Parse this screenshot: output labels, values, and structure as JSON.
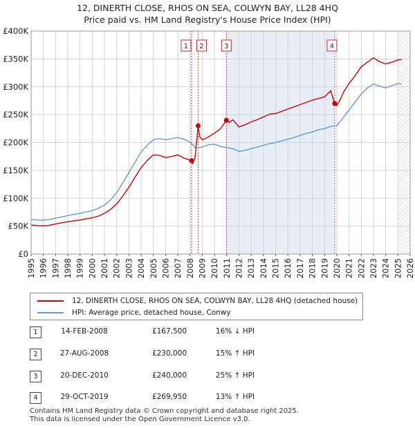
{
  "title_line1": "12, DINERTH CLOSE, RHOS ON SEA, COLWYN BAY, LL28 4HQ",
  "title_line2": "Price paid vs. HM Land Registry's House Price Index (HPI)",
  "chart_data": {
    "type": "line",
    "xlabel": "",
    "ylabel": "",
    "xlim": [
      1995,
      2026
    ],
    "ylim": [
      0,
      400000
    ],
    "x_ticks": [
      "1995",
      "1996",
      "1997",
      "1998",
      "1999",
      "2000",
      "2001",
      "2002",
      "2003",
      "2004",
      "2005",
      "2006",
      "2007",
      "2008",
      "2009",
      "2010",
      "2011",
      "2012",
      "2013",
      "2014",
      "2015",
      "2016",
      "2017",
      "2018",
      "2019",
      "2020",
      "2021",
      "2022",
      "2023",
      "2024",
      "2025",
      "2026"
    ],
    "y_ticks": [
      {
        "value": 0,
        "label": "£0"
      },
      {
        "value": 50000,
        "label": "£50K"
      },
      {
        "value": 100000,
        "label": "£100K"
      },
      {
        "value": 150000,
        "label": "£150K"
      },
      {
        "value": 200000,
        "label": "£200K"
      },
      {
        "value": 250000,
        "label": "£250K"
      },
      {
        "value": 300000,
        "label": "£300K"
      },
      {
        "value": 350000,
        "label": "£350K"
      },
      {
        "value": 400000,
        "label": "£400K"
      }
    ],
    "shaded_region": [
      2010.97,
      2019.83
    ],
    "future_hatch_from": 2025.0,
    "series": [
      {
        "name": "12, DINERTH CLOSE, RHOS ON SEA, COLWYN BAY, LL28 4HQ (detached house)",
        "color": "#cc0000",
        "x": [
          1995.0,
          1995.5,
          1996.0,
          1996.5,
          1997.0,
          1997.5,
          1998.0,
          1998.5,
          1999.0,
          1999.5,
          2000.0,
          2000.5,
          2001.0,
          2001.5,
          2002.0,
          2002.5,
          2003.0,
          2003.5,
          2004.0,
          2004.5,
          2005.0,
          2005.5,
          2006.0,
          2006.5,
          2007.0,
          2007.5,
          2008.12,
          2008.2,
          2008.4,
          2008.66,
          2008.8,
          2009.0,
          2009.5,
          2010.0,
          2010.5,
          2010.97,
          2011.2,
          2011.5,
          2012.0,
          2012.5,
          2013.0,
          2013.5,
          2014.0,
          2014.5,
          2015.0,
          2015.5,
          2016.0,
          2016.5,
          2017.0,
          2017.5,
          2018.0,
          2018.5,
          2019.0,
          2019.5,
          2019.83,
          2020.0,
          2020.3,
          2020.6,
          2021.0,
          2021.5,
          2022.0,
          2022.5,
          2023.0,
          2023.5,
          2024.0,
          2024.5,
          2025.0,
          2025.3
        ],
        "values": [
          52000,
          51000,
          50500,
          51500,
          54000,
          56000,
          58000,
          59500,
          61000,
          63000,
          65000,
          68000,
          73000,
          80000,
          90000,
          104000,
          120000,
          138000,
          155000,
          168000,
          178000,
          177000,
          173000,
          175000,
          178000,
          172000,
          167500,
          162000,
          172000,
          230000,
          210000,
          205000,
          210000,
          217000,
          225000,
          240000,
          236000,
          241000,
          228000,
          232000,
          237000,
          241000,
          246000,
          251000,
          252000,
          256000,
          260000,
          264000,
          268000,
          272000,
          276000,
          279000,
          282000,
          293000,
          269950,
          266000,
          278000,
          292000,
          306000,
          320000,
          336000,
          344000,
          352000,
          345000,
          341000,
          344000,
          348000,
          349000
        ]
      },
      {
        "name": "HPI: Average price, detached house, Conwy",
        "color": "#6699cc",
        "x": [
          1995.0,
          1995.5,
          1996.0,
          1996.5,
          1997.0,
          1997.5,
          1998.0,
          1998.5,
          1999.0,
          1999.5,
          2000.0,
          2000.5,
          2001.0,
          2001.5,
          2002.0,
          2002.5,
          2003.0,
          2003.5,
          2004.0,
          2004.5,
          2005.0,
          2005.5,
          2006.0,
          2006.5,
          2007.0,
          2007.5,
          2008.0,
          2008.5,
          2009.0,
          2009.5,
          2010.0,
          2010.5,
          2011.0,
          2011.5,
          2012.0,
          2012.5,
          2013.0,
          2013.5,
          2014.0,
          2014.5,
          2015.0,
          2015.5,
          2016.0,
          2016.5,
          2017.0,
          2017.5,
          2018.0,
          2018.5,
          2019.0,
          2019.5,
          2020.0,
          2020.5,
          2021.0,
          2021.5,
          2022.0,
          2022.5,
          2023.0,
          2023.5,
          2024.0,
          2024.5,
          2025.0,
          2025.3
        ],
        "values": [
          62000,
          61000,
          60500,
          62000,
          64500,
          66500,
          69000,
          71000,
          73000,
          75500,
          78000,
          82000,
          88000,
          97000,
          110000,
          128000,
          146000,
          165000,
          183000,
          195000,
          205000,
          207000,
          205000,
          207000,
          209000,
          206000,
          201000,
          190000,
          192000,
          196000,
          197000,
          193000,
          191000,
          189000,
          184000,
          186000,
          189000,
          192000,
          195000,
          198000,
          200000,
          203000,
          206000,
          209000,
          213000,
          216000,
          219000,
          223000,
          225000,
          229000,
          230000,
          244000,
          258000,
          273000,
          287000,
          298000,
          305000,
          301000,
          298000,
          302000,
          306000,
          305000
        ]
      }
    ],
    "sales": [
      {
        "label": "1",
        "x": 2008.12,
        "y": 167500,
        "date": "14-FEB-2008",
        "price": "£167,500",
        "hpi": "16% ↓ HPI"
      },
      {
        "label": "2",
        "x": 2008.66,
        "y": 230000,
        "date": "27-AUG-2008",
        "price": "£230,000",
        "hpi": "15% ↑ HPI"
      },
      {
        "label": "3",
        "x": 2010.97,
        "y": 240000,
        "date": "20-DEC-2010",
        "price": "£240,000",
        "hpi": "25% ↑ HPI"
      },
      {
        "label": "4",
        "x": 2019.83,
        "y": 269950,
        "date": "29-OCT-2019",
        "price": "£269,950",
        "hpi": "13% ↑ HPI"
      }
    ]
  },
  "legend": {
    "series_1": "12, DINERTH CLOSE, RHOS ON SEA, COLWYN BAY, LL28 4HQ (detached house)",
    "series_2": "HPI: Average price, detached house, Conwy"
  },
  "footer": {
    "line1": "Contains HM Land Registry data © Crown copyright and database right 2025.",
    "line2": "This data is licensed under the Open Government Licence v3.0."
  }
}
